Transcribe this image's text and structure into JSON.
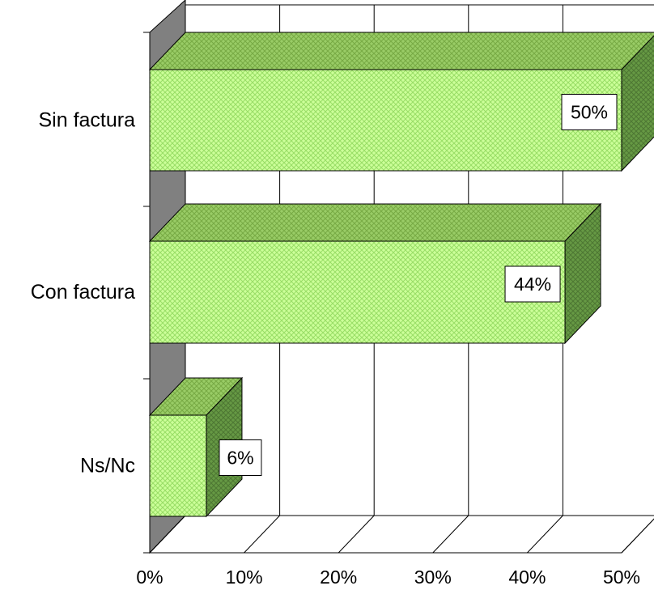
{
  "chart_data": {
    "type": "bar",
    "orientation": "horizontal",
    "three_d": true,
    "categories": [
      "Sin factura",
      "Con factura",
      "Ns/Nc"
    ],
    "values": [
      50,
      44,
      6
    ],
    "data_labels": [
      "50%",
      "44%",
      "6%"
    ],
    "x_ticks": [
      "0%",
      "10%",
      "20%",
      "30%",
      "40%",
      "50%"
    ],
    "xlim": [
      0,
      50
    ],
    "grid": true,
    "legend": "none",
    "title": "",
    "xlabel": "",
    "ylabel": ""
  },
  "colors": {
    "bar_front": "#ccff99",
    "bar_top": "#99cc66",
    "bar_side": "#669944",
    "back_wall": "#ffffff",
    "side_wall": "#808080",
    "gridline": "#000000"
  }
}
